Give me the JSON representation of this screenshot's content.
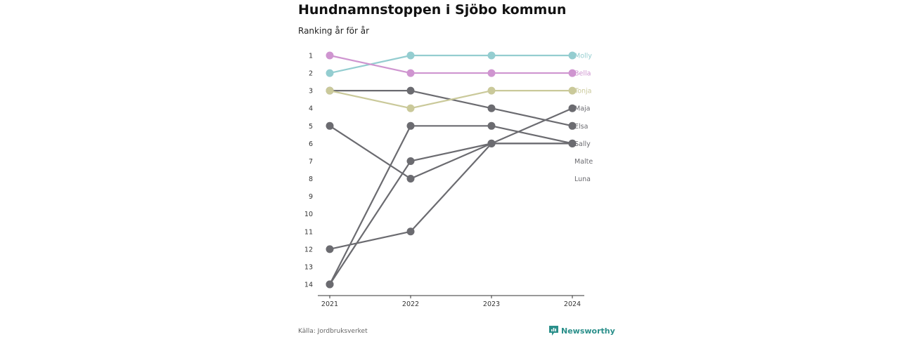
{
  "header": {
    "title": "Hundnamnstoppen i Sjöbo kommun",
    "subtitle": "Ranking år för år"
  },
  "footer": {
    "source": "Källa: Jordbruksverket",
    "brand": "Newsworthy"
  },
  "colors": {
    "Molly": "#94cdd0",
    "Bella": "#cf95d0",
    "Tonja": "#cac99a",
    "default": "#6b6b70",
    "brand": "#2a8f8a"
  },
  "chart_data": {
    "type": "line",
    "x": [
      "2021",
      "2022",
      "2023",
      "2024"
    ],
    "y_ticks": [
      1,
      2,
      3,
      4,
      5,
      6,
      7,
      8,
      9,
      10,
      11,
      12,
      13,
      14
    ],
    "ylim": [
      1,
      14
    ],
    "y_reversed": true,
    "grid": false,
    "series": [
      {
        "name": "Molly",
        "values": [
          2,
          1,
          1,
          1
        ]
      },
      {
        "name": "Bella",
        "values": [
          1,
          2,
          2,
          2
        ]
      },
      {
        "name": "Tonja",
        "values": [
          3,
          4,
          3,
          3
        ]
      },
      {
        "name": "Maja",
        "values": [
          14,
          7,
          6,
          4
        ]
      },
      {
        "name": "Elsa",
        "values": [
          3,
          3,
          4,
          5
        ]
      },
      {
        "name": "Sally",
        "values": [
          5,
          8,
          6,
          6
        ]
      },
      {
        "name": "Malte",
        "values": [
          14,
          5,
          5,
          6
        ]
      },
      {
        "name": "Luna",
        "values": [
          12,
          11,
          6,
          6
        ]
      }
    ],
    "label_order": [
      "Molly",
      "Bella",
      "Tonja",
      "Maja",
      "Elsa",
      "Sally",
      "Malte",
      "Luna"
    ]
  }
}
